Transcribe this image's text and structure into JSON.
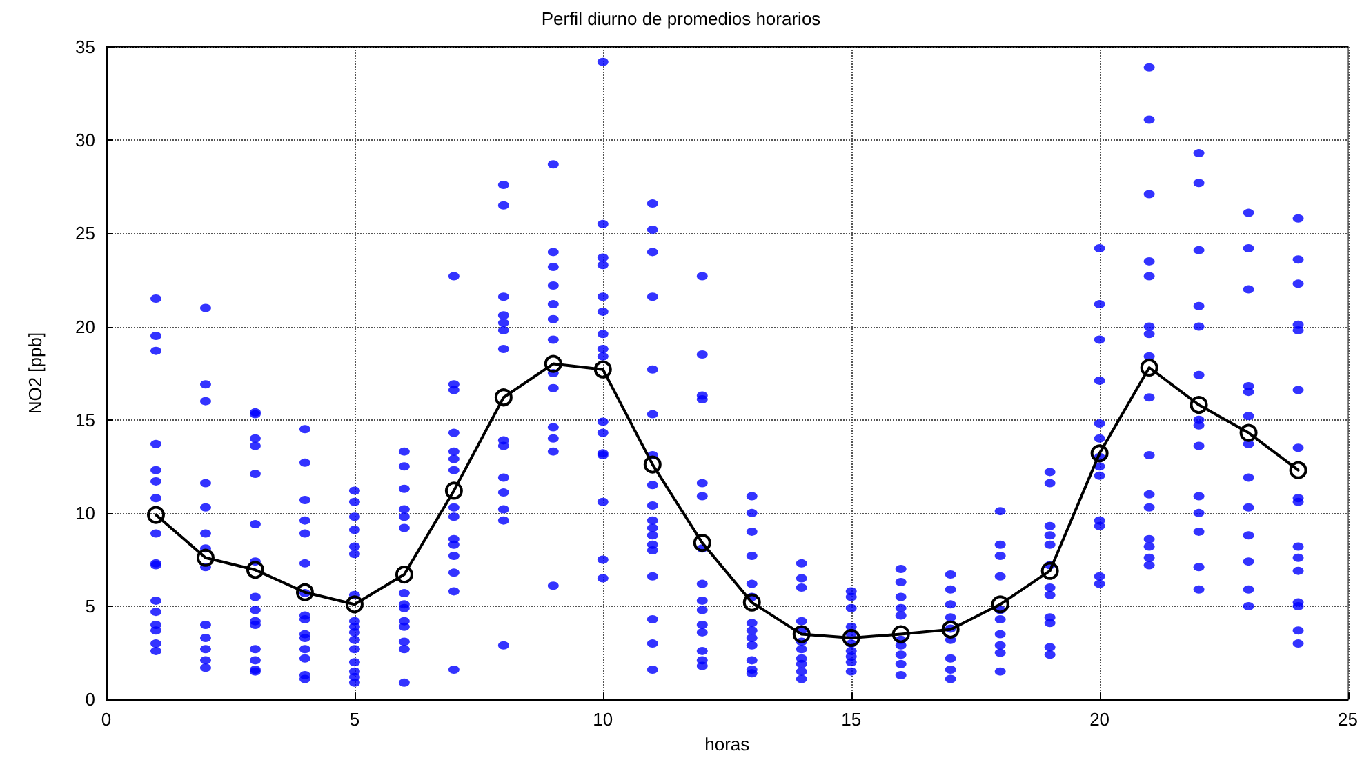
{
  "chart_data": {
    "type": "scatter",
    "title": "Perfil diurno de promedios horarios",
    "xlabel": "horas",
    "ylabel": "NO2 [ppb]",
    "xlim": [
      0,
      25
    ],
    "xticks": [
      0,
      5,
      10,
      15,
      20,
      25
    ],
    "ylim": [
      0,
      35
    ],
    "yticks": [
      0,
      5,
      10,
      15,
      20,
      25,
      30,
      35
    ],
    "grid": true,
    "series": [
      {
        "type": "scatter",
        "marker": "circle",
        "color": "#0000ff",
        "x": [
          1,
          1,
          1,
          1,
          1,
          1,
          1,
          1,
          1,
          1,
          1,
          1,
          1,
          1,
          1,
          1,
          2,
          2,
          2,
          2,
          2,
          2,
          2,
          2,
          2,
          2,
          2,
          2,
          2,
          3,
          3,
          3,
          3,
          3,
          3,
          3,
          3,
          3,
          3,
          3,
          3,
          3,
          3,
          3,
          4,
          4,
          4,
          4,
          4,
          4,
          4,
          4,
          4,
          4,
          4,
          4,
          4,
          4,
          4,
          5,
          5,
          5,
          5,
          5,
          5,
          5,
          5,
          5,
          5,
          5,
          5,
          5,
          5,
          5,
          5,
          6,
          6,
          6,
          6,
          6,
          6,
          6,
          6,
          6,
          6,
          6,
          6,
          6,
          6,
          7,
          7,
          7,
          7,
          7,
          7,
          7,
          7,
          7,
          7,
          7,
          7,
          7,
          7,
          7,
          8,
          8,
          8,
          8,
          8,
          8,
          8,
          8,
          8,
          8,
          8,
          8,
          8,
          8,
          9,
          9,
          9,
          9,
          9,
          9,
          9,
          9,
          9,
          9,
          9,
          9,
          9,
          10,
          10,
          10,
          10,
          10,
          10,
          10,
          10,
          10,
          10,
          10,
          10,
          10,
          10,
          10,
          10,
          11,
          11,
          11,
          11,
          11,
          11,
          11,
          11,
          11,
          11,
          11,
          11,
          11,
          11,
          11,
          11,
          11,
          11,
          12,
          12,
          12,
          12,
          12,
          12,
          12,
          12,
          12,
          12,
          12,
          12,
          12,
          12,
          12,
          13,
          13,
          13,
          13,
          13,
          13,
          13,
          13,
          13,
          13,
          13,
          13,
          13,
          14,
          14,
          14,
          14,
          14,
          14,
          14,
          14,
          14,
          14,
          14,
          15,
          15,
          15,
          15,
          15,
          15,
          15,
          15,
          15,
          15,
          16,
          16,
          16,
          16,
          16,
          16,
          16,
          16,
          16,
          16,
          17,
          17,
          17,
          17,
          17,
          17,
          17,
          17,
          17,
          18,
          18,
          18,
          18,
          18,
          18,
          18,
          18,
          18,
          18,
          19,
          19,
          19,
          19,
          19,
          19,
          19,
          19,
          19,
          19,
          19,
          19,
          20,
          20,
          20,
          20,
          20,
          20,
          20,
          20,
          20,
          20,
          20,
          20,
          20,
          21,
          21,
          21,
          21,
          21,
          21,
          21,
          21,
          21,
          21,
          21,
          21,
          21,
          21,
          21,
          21,
          22,
          22,
          22,
          22,
          22,
          22,
          22,
          22,
          22,
          22,
          22,
          22,
          22,
          22,
          23,
          23,
          23,
          23,
          23,
          23,
          23,
          23,
          23,
          23,
          23,
          23,
          23,
          24,
          24,
          24,
          24,
          24,
          24,
          24,
          24,
          24,
          24,
          24,
          24,
          24,
          24,
          24,
          24
        ],
        "values": [
          21.5,
          19.5,
          18.7,
          13.7,
          12.3,
          11.7,
          10.8,
          8.9,
          7.3,
          7.2,
          5.3,
          4.7,
          4.0,
          3.7,
          3.0,
          2.6,
          21.0,
          16.9,
          16.0,
          11.6,
          10.3,
          8.9,
          8.1,
          7.1,
          4.0,
          3.3,
          2.7,
          2.1,
          1.7,
          15.4,
          15.3,
          14.0,
          13.6,
          12.1,
          9.4,
          7.4,
          5.5,
          4.8,
          4.2,
          4.0,
          2.7,
          2.1,
          1.6,
          1.5,
          14.5,
          12.7,
          10.7,
          9.6,
          8.9,
          7.3,
          5.7,
          4.5,
          4.3,
          3.5,
          3.3,
          2.7,
          2.2,
          1.3,
          1.1,
          11.2,
          10.6,
          9.8,
          9.1,
          8.2,
          7.8,
          5.6,
          4.2,
          3.9,
          3.6,
          3.2,
          2.7,
          2.0,
          1.5,
          1.2,
          0.9,
          13.3,
          12.5,
          11.3,
          10.2,
          9.8,
          9.2,
          5.7,
          5.1,
          4.9,
          4.2,
          3.9,
          3.1,
          2.7,
          0.9,
          22.7,
          16.9,
          16.6,
          14.3,
          13.3,
          12.9,
          12.3,
          10.3,
          9.8,
          8.6,
          8.3,
          7.7,
          6.8,
          5.8,
          1.6,
          27.6,
          26.5,
          21.6,
          20.6,
          20.2,
          19.8,
          18.8,
          13.9,
          13.6,
          11.9,
          11.1,
          10.2,
          9.6,
          2.9,
          28.7,
          24.0,
          23.2,
          22.2,
          21.2,
          20.4,
          19.3,
          17.5,
          16.7,
          14.6,
          14.0,
          13.3,
          6.1,
          34.2,
          25.5,
          23.7,
          23.3,
          21.6,
          20.8,
          19.6,
          18.8,
          18.4,
          14.9,
          14.3,
          13.2,
          13.1,
          10.6,
          7.5,
          6.5,
          26.6,
          25.2,
          24.0,
          21.6,
          17.7,
          15.3,
          13.1,
          11.5,
          10.4,
          9.6,
          9.2,
          8.8,
          8.3,
          8.0,
          6.6,
          4.3,
          3.0,
          1.6,
          22.7,
          18.5,
          16.3,
          16.1,
          11.6,
          10.9,
          8.1,
          6.2,
          5.3,
          4.8,
          4.0,
          3.6,
          2.6,
          2.1,
          1.8,
          10.9,
          10.0,
          9.0,
          7.7,
          6.2,
          5.5,
          4.1,
          3.7,
          3.3,
          2.9,
          2.1,
          1.6,
          1.4,
          7.3,
          6.5,
          6.0,
          4.2,
          3.7,
          3.1,
          2.7,
          2.2,
          1.9,
          1.5,
          1.1,
          5.8,
          5.5,
          4.9,
          3.9,
          3.5,
          3.0,
          2.6,
          2.3,
          2.0,
          1.5,
          7.0,
          6.3,
          5.5,
          4.9,
          4.5,
          3.2,
          2.9,
          2.4,
          1.9,
          1.3,
          6.7,
          5.9,
          5.1,
          4.4,
          3.8,
          3.2,
          2.2,
          1.6,
          1.1,
          10.1,
          8.3,
          7.7,
          6.6,
          4.8,
          4.3,
          3.5,
          2.9,
          2.5,
          1.5,
          12.2,
          11.6,
          9.3,
          8.8,
          8.3,
          7.2,
          6.0,
          5.6,
          4.4,
          4.1,
          2.8,
          2.4,
          24.2,
          21.2,
          19.3,
          17.1,
          14.8,
          14.0,
          13.0,
          12.5,
          12.0,
          9.6,
          9.3,
          6.6,
          6.2,
          33.9,
          31.1,
          27.1,
          23.5,
          22.7,
          20.0,
          19.6,
          18.4,
          16.2,
          13.1,
          11.0,
          10.3,
          8.6,
          8.2,
          7.6,
          7.2,
          29.3,
          27.7,
          24.1,
          21.1,
          20.0,
          17.4,
          15.0,
          14.7,
          13.6,
          10.9,
          10.0,
          9.0,
          7.1,
          5.9,
          26.1,
          24.2,
          22.0,
          16.8,
          16.5,
          15.2,
          13.7,
          11.9,
          10.3,
          8.8,
          7.4,
          5.9,
          5.0,
          25.8,
          23.6,
          22.3,
          20.1,
          19.8,
          16.6,
          13.5,
          10.8,
          10.6,
          8.2,
          7.6,
          6.9,
          5.2,
          5.0,
          3.7,
          3.0
        ]
      },
      {
        "type": "line",
        "marker": "circle",
        "line_style": "solid",
        "color": "#000000",
        "x": [
          1,
          2,
          3,
          4,
          5,
          6,
          7,
          8,
          9,
          10,
          11,
          12,
          13,
          14,
          15,
          16,
          17,
          18,
          19,
          20,
          21,
          22,
          23,
          24
        ],
        "values": [
          9.9,
          7.6,
          6.95,
          5.75,
          5.1,
          6.7,
          11.2,
          16.2,
          18.0,
          17.7,
          12.6,
          8.4,
          5.2,
          3.5,
          3.3,
          3.5,
          3.75,
          5.1,
          6.9,
          13.2,
          17.8,
          15.8,
          14.3,
          12.3
        ]
      }
    ]
  }
}
